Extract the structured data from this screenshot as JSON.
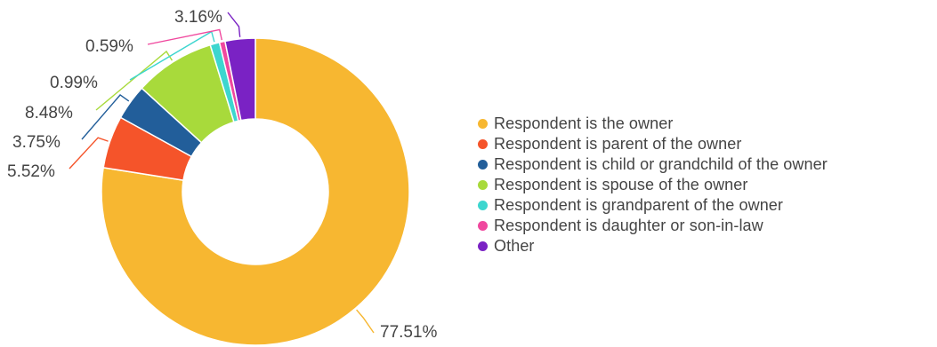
{
  "chart_data": {
    "type": "pie",
    "donut": true,
    "title": "",
    "legend_position": "right",
    "categories": [
      "Respondent is the owner",
      "Respondent is parent of the owner",
      "Respondent is child or grandchild of the owner",
      "Respondent is spouse of the owner",
      "Respondent is grandparent of the owner",
      "Respondent is daughter or son-in-law",
      "Other"
    ],
    "values": [
      77.51,
      5.52,
      3.75,
      8.48,
      0.99,
      0.59,
      3.16
    ],
    "labels": [
      "77.51%",
      "5.52%",
      "3.75%",
      "8.48%",
      "0.99%",
      "0.59%",
      "3.16%"
    ],
    "colors": [
      "#F7B731",
      "#F5542A",
      "#225E9A",
      "#A8DA3B",
      "#3DD6CF",
      "#F0489E",
      "#7A22C4"
    ]
  }
}
